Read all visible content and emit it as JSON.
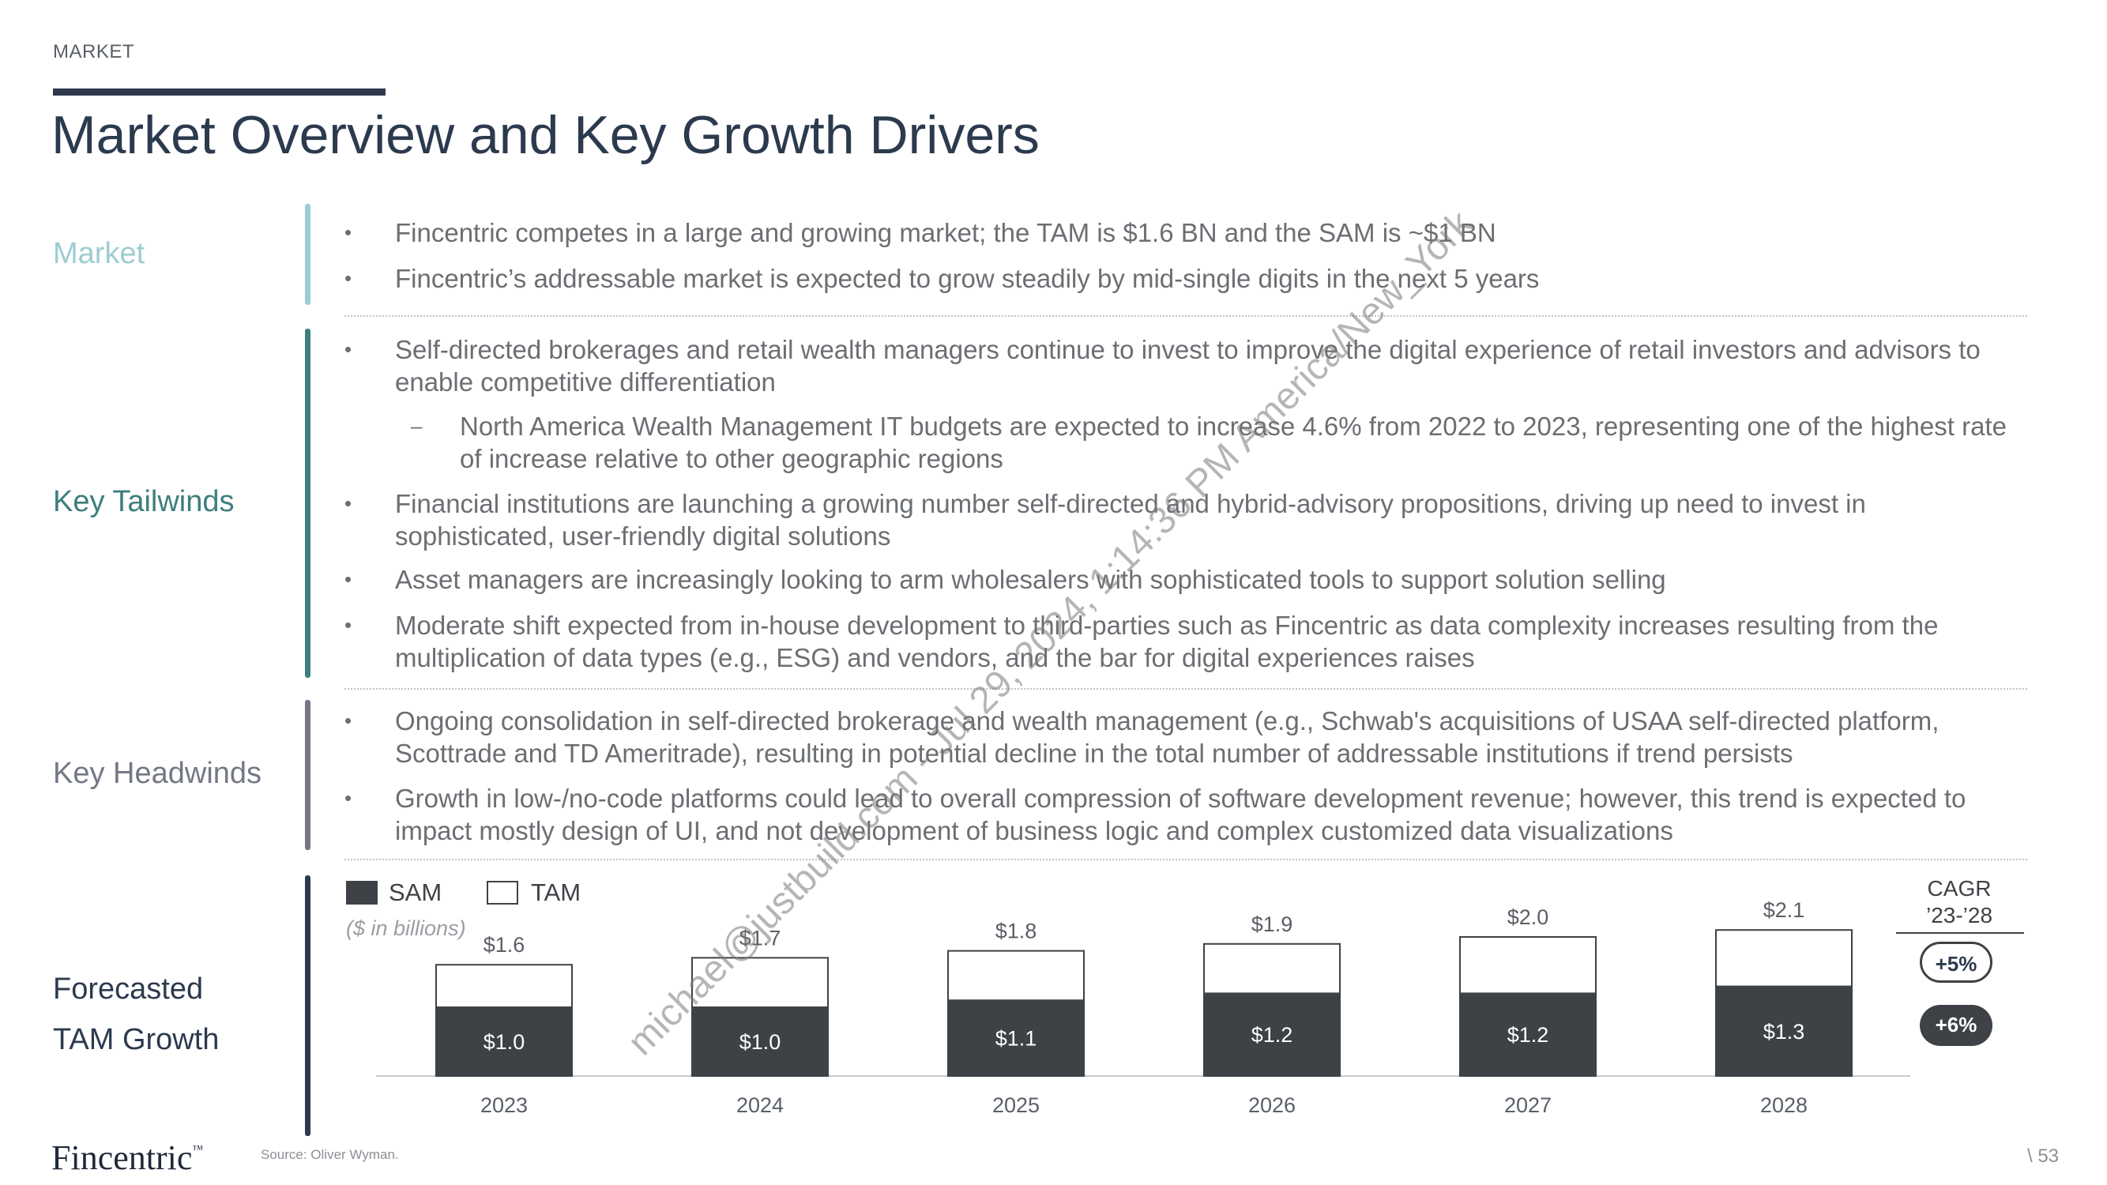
{
  "header": {
    "section": "MARKET",
    "title": "Market Overview and Key Growth Drivers"
  },
  "colors": {
    "market": "#9ccdd3",
    "tailwinds": "#3e7e7e",
    "headwinds": "#747886",
    "forecast": "#2c3a4e",
    "sam": "#3e4246",
    "tam": "#ffffff"
  },
  "sections": {
    "market": {
      "label": "Market",
      "bullets": [
        "Fincentric competes in a large and growing market; the TAM is $1.6 BN and the SAM is ~$1 BN",
        "Fincentric’s addressable market is expected to grow steadily by mid-single digits in the next 5 years"
      ]
    },
    "tailwinds": {
      "label": "Key Tailwinds",
      "bullets": [
        "Self-directed brokerages and retail wealth managers continue to invest to improve the digital experience of retail investors and advisors to enable competitive differentiation",
        "North America Wealth Management IT budgets are expected to increase 4.6% from 2022 to 2023, representing one of the highest rate of increase relative to other geographic regions",
        "Financial institutions are launching a growing number self-directed and hybrid-advisory propositions, driving up need to invest in sophisticated, user-friendly digital solutions",
        "Asset managers are increasingly looking to arm wholesalers with sophisticated tools to support solution selling",
        "Moderate shift expected from in-house development to third-parties such as Fincentric as data complexity increases resulting from the multiplication of data types (e.g., ESG) and vendors, and the bar for digital experiences raises"
      ],
      "sub_marker": "–",
      "bullet_marker": "•"
    },
    "headwinds": {
      "label": "Key Headwinds",
      "bullets": [
        "Ongoing consolidation in self-directed brokerage and wealth management (e.g., Schwab's acquisitions of USAA self-directed platform, Scottrade and TD Ameritrade), resulting in potential decline in the total number of addressable institutions if trend persists",
        "Growth in low-/no-code platforms could lead to overall compression of software development revenue; however, this trend is expected to impact mostly design of UI, and not development of business logic and complex customized data visualizations"
      ]
    },
    "forecast": {
      "label_line1": "Forecasted",
      "label_line2": "TAM Growth"
    }
  },
  "legend": {
    "sam": "SAM",
    "tam": "TAM",
    "units": "($ in billions)"
  },
  "cagr": {
    "header_line1": "CAGR",
    "header_line2": "’23-’28",
    "tam": "+5%",
    "sam": "+6%"
  },
  "chart_data": {
    "type": "bar",
    "stacked": false,
    "categories": [
      "2023",
      "2024",
      "2025",
      "2026",
      "2027",
      "2028"
    ],
    "series": [
      {
        "name": "SAM",
        "values": [
          1.0,
          1.0,
          1.1,
          1.2,
          1.2,
          1.3
        ],
        "labels": [
          "$1.0",
          "$1.0",
          "$1.1",
          "$1.2",
          "$1.2",
          "$1.3"
        ]
      },
      {
        "name": "TAM",
        "values": [
          1.6,
          1.7,
          1.8,
          1.9,
          2.0,
          2.1
        ],
        "labels": [
          "$1.6",
          "$1.7",
          "$1.8",
          "$1.9",
          "$2.0",
          "$2.1"
        ]
      }
    ],
    "title": "",
    "xlabel": "",
    "ylabel": "",
    "legend": "top-left",
    "grid": false
  },
  "footer": {
    "brand": "Fincentric",
    "trademark": "™",
    "source": "Source: Oliver Wyman.",
    "page": "\\ 53"
  },
  "watermark": "michael@justbuild.com - Jul 29, 2024, 1:14:36 PM America/New_York"
}
